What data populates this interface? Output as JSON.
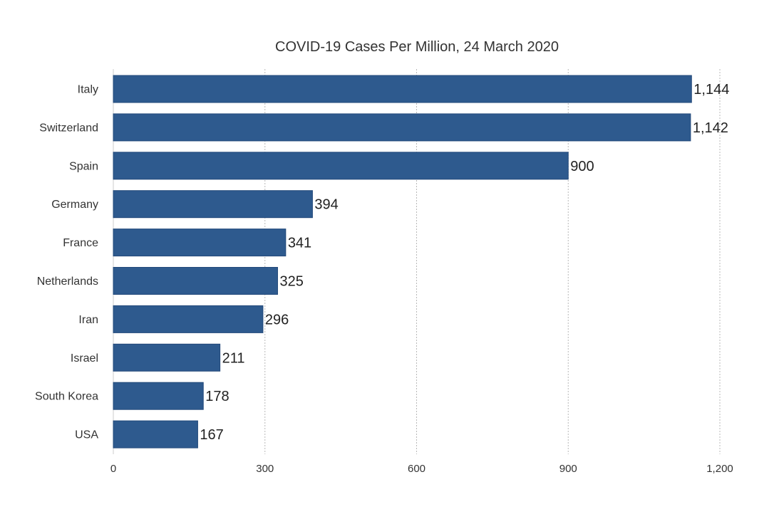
{
  "chart_data": {
    "type": "bar",
    "orientation": "horizontal",
    "title": "COVID-19 Cases Per Million, 24 March 2020",
    "xlabel": "",
    "ylabel": "",
    "categories": [
      "Italy",
      "Switzerland",
      "Spain",
      "Germany",
      "France",
      "Netherlands",
      "Iran",
      "Israel",
      "South Korea",
      "USA"
    ],
    "values": [
      1144,
      1142,
      900,
      394,
      341,
      325,
      296,
      211,
      178,
      167
    ],
    "value_labels": [
      "1,144",
      "1,142",
      "900",
      "394",
      "341",
      "325",
      "296",
      "211",
      "178",
      "167"
    ],
    "xlim": [
      0,
      1200
    ],
    "xticks": [
      0,
      300,
      600,
      900,
      1200
    ],
    "xtick_labels": [
      "0",
      "300",
      "600",
      "900",
      "1,200"
    ],
    "grid": "vertical dotted",
    "bar_color": "#2e5a8e",
    "legend": "none"
  }
}
